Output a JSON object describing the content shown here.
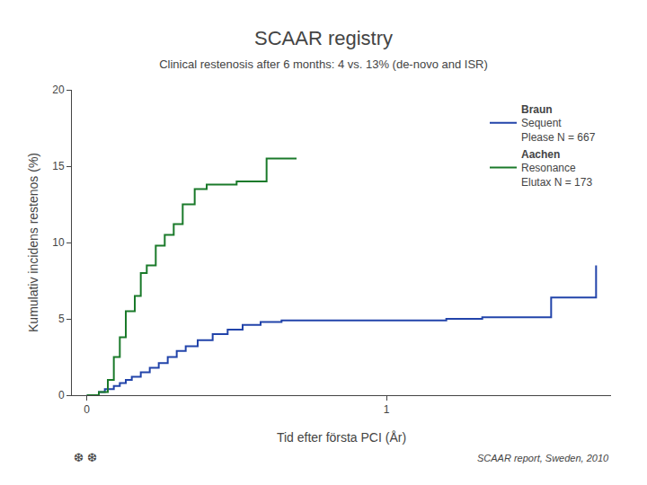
{
  "chart_data": {
    "type": "step",
    "title": "SCAAR registry",
    "subtitle": "Clinical restenosis after 6 months: 4 vs. 13% (de-novo and ISR)",
    "xlabel": "Tid efter första PCI (År)",
    "ylabel": "Kumulativ incidens restenos (%)",
    "xlim": [
      -0.05,
      1.75
    ],
    "xticks": [
      0,
      1
    ],
    "ylim": [
      0,
      20
    ],
    "yticks": [
      0,
      5,
      10,
      15,
      20
    ],
    "grid": false,
    "legend": "upper right",
    "series": [
      {
        "name": "Braun",
        "color": "#2244aa",
        "x": [
          0.0,
          0.04,
          0.06,
          0.09,
          0.11,
          0.13,
          0.15,
          0.18,
          0.21,
          0.24,
          0.27,
          0.3,
          0.33,
          0.37,
          0.42,
          0.47,
          0.52,
          0.58,
          0.65,
          1.1,
          1.2,
          1.32,
          1.42,
          1.55,
          1.7
        ],
        "values": [
          0.0,
          0.2,
          0.4,
          0.6,
          0.8,
          1.0,
          1.2,
          1.5,
          1.8,
          2.1,
          2.5,
          2.9,
          3.2,
          3.6,
          4.0,
          4.3,
          4.6,
          4.8,
          4.9,
          4.9,
          5.0,
          5.1,
          5.1,
          6.4,
          8.5
        ]
      },
      {
        "name": "Aachen",
        "color": "#1a7a2a",
        "x": [
          0.0,
          0.04,
          0.07,
          0.09,
          0.11,
          0.13,
          0.16,
          0.18,
          0.2,
          0.23,
          0.26,
          0.29,
          0.32,
          0.36,
          0.4,
          0.5,
          0.6,
          0.7
        ],
        "values": [
          0.0,
          0.2,
          1.0,
          2.5,
          3.8,
          5.5,
          6.5,
          8.0,
          8.5,
          9.8,
          10.5,
          11.2,
          12.5,
          13.5,
          13.8,
          14.0,
          15.5,
          15.5
        ]
      }
    ],
    "annotations": [
      {
        "text": "Sequent\nPlease N = 667"
      },
      {
        "text": "Resonance\nElutax N = 173"
      },
      {
        "text": "SCAAR report, Sweden, 2010"
      },
      {
        "text": "❆ ❆"
      }
    ]
  }
}
